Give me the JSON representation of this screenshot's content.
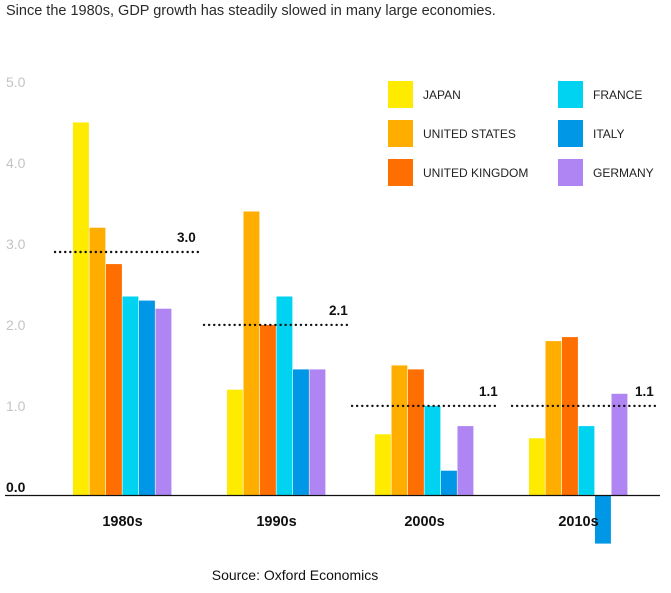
{
  "page": {
    "title": "Since the 1980s, GDP growth has steadily slowed in many large economies.",
    "source": "Source: Oxford Economics"
  },
  "chart_data": {
    "type": "bar",
    "title": "Since the 1980s, GDP growth has steadily slowed in many large economies.",
    "xlabel": "",
    "ylabel": "",
    "categories": [
      "1980s",
      "1990s",
      "2000s",
      "2010s"
    ],
    "ylim": [
      -0.6,
      5.0
    ],
    "yticks": [
      "0.0",
      "1.0",
      "2.0",
      "3.0",
      "4.0",
      "5.0"
    ],
    "grid": false,
    "legend": "top-right",
    "series": [
      {
        "name": "JAPAN",
        "color": "#FFEB00",
        "values": [
          4.6,
          1.3,
          0.75,
          0.7
        ]
      },
      {
        "name": "UNITED STATES",
        "color": "#FFAE00",
        "values": [
          3.3,
          3.5,
          1.6,
          1.9
        ]
      },
      {
        "name": "UNITED KINGDOM",
        "color": "#FF6E00",
        "values": [
          2.85,
          2.1,
          1.55,
          1.95
        ]
      },
      {
        "name": "FRANCE",
        "color": "#00D3F1",
        "values": [
          2.45,
          2.45,
          1.1,
          0.85
        ]
      },
      {
        "name": "ITALY",
        "color": "#0097E6",
        "values": [
          2.4,
          1.55,
          0.3,
          -0.6
        ]
      },
      {
        "name": "GERMANY",
        "color": "#AE85F3",
        "values": [
          2.3,
          1.55,
          0.85,
          1.25
        ]
      }
    ],
    "averages": [
      {
        "value": 3.0,
        "label": "3.0"
      },
      {
        "value": 2.1,
        "label": "2.1"
      },
      {
        "value": 1.1,
        "label": "1.1"
      },
      {
        "value": 1.1,
        "label": "1.1"
      }
    ]
  }
}
